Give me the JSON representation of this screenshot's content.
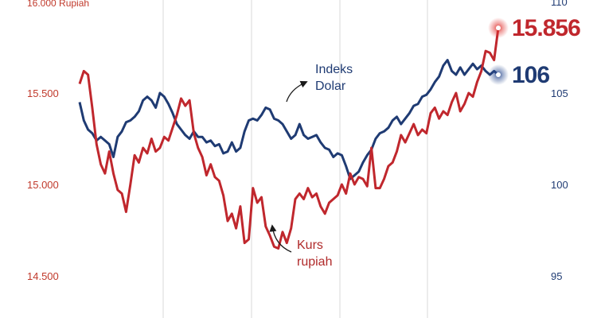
{
  "chart_data": {
    "type": "line",
    "left_axis": {
      "unit_label": "16.000 Rupiah",
      "ticks": [
        "15.500",
        "15.000",
        "14.500"
      ],
      "tick_values": [
        15500,
        15000,
        14500
      ],
      "range": [
        14500,
        16000
      ]
    },
    "right_axis": {
      "ticks": [
        "110",
        "105",
        "100",
        "95"
      ],
      "tick_values": [
        110,
        105,
        100,
        95
      ],
      "range": [
        95,
        110
      ]
    },
    "grid": "vertical",
    "series": [
      {
        "name": "Kurs rupiah",
        "axis": "left",
        "color": "#c0272d",
        "end_label": "15.856",
        "values": [
          15550,
          15620,
          15600,
          15420,
          15220,
          15110,
          15060,
          15180,
          15060,
          14970,
          14950,
          14850,
          15000,
          15160,
          15120,
          15200,
          15170,
          15250,
          15180,
          15200,
          15260,
          15240,
          15310,
          15380,
          15470,
          15430,
          15460,
          15280,
          15200,
          15150,
          15050,
          15110,
          15040,
          15020,
          14940,
          14800,
          14840,
          14760,
          14880,
          14680,
          14700,
          14980,
          14900,
          14930,
          14770,
          14720,
          14660,
          14650,
          14740,
          14680,
          14760,
          14920,
          14950,
          14920,
          14980,
          14930,
          14950,
          14880,
          14840,
          14900,
          14920,
          14940,
          15000,
          14950,
          15060,
          15000,
          15040,
          15030,
          14990,
          15200,
          14980,
          14980,
          15030,
          15100,
          15120,
          15180,
          15270,
          15230,
          15280,
          15330,
          15270,
          15300,
          15280,
          15390,
          15420,
          15360,
          15400,
          15380,
          15450,
          15500,
          15400,
          15440,
          15500,
          15480,
          15560,
          15620,
          15730,
          15720,
          15680,
          15856
        ]
      },
      {
        "name": "Indeks Dolar",
        "axis": "right",
        "color": "#1f3b73",
        "end_label": "106",
        "values": [
          104.5,
          103.5,
          103.0,
          102.8,
          102.4,
          102.6,
          102.4,
          102.2,
          101.5,
          102.6,
          102.9,
          103.4,
          103.5,
          103.7,
          104.0,
          104.6,
          104.8,
          104.6,
          104.2,
          105.0,
          104.8,
          104.4,
          103.9,
          103.3,
          103.0,
          102.7,
          102.5,
          102.9,
          102.6,
          102.6,
          102.3,
          102.4,
          102.1,
          102.2,
          101.7,
          101.8,
          102.3,
          101.8,
          102.0,
          102.9,
          103.5,
          103.6,
          103.5,
          103.8,
          104.2,
          104.1,
          103.6,
          103.5,
          103.3,
          102.9,
          102.5,
          102.7,
          103.3,
          102.7,
          102.5,
          102.6,
          102.7,
          102.3,
          102.0,
          101.9,
          101.5,
          101.7,
          101.6,
          101.0,
          100.3,
          100.5,
          100.7,
          101.2,
          101.6,
          101.9,
          102.5,
          102.8,
          102.9,
          103.1,
          103.5,
          103.7,
          103.3,
          103.6,
          103.9,
          104.3,
          104.4,
          104.8,
          104.9,
          105.2,
          105.6,
          105.9,
          106.5,
          106.8,
          106.2,
          106.0,
          106.4,
          106.0,
          106.3,
          106.6,
          106.3,
          106.5,
          106.2,
          106.0,
          106.2,
          106.0
        ]
      }
    ],
    "annotations": {
      "dollar_index": [
        "Indeks",
        "Dolar"
      ],
      "rupiah": [
        "Kurs",
        "rupiah"
      ]
    }
  }
}
